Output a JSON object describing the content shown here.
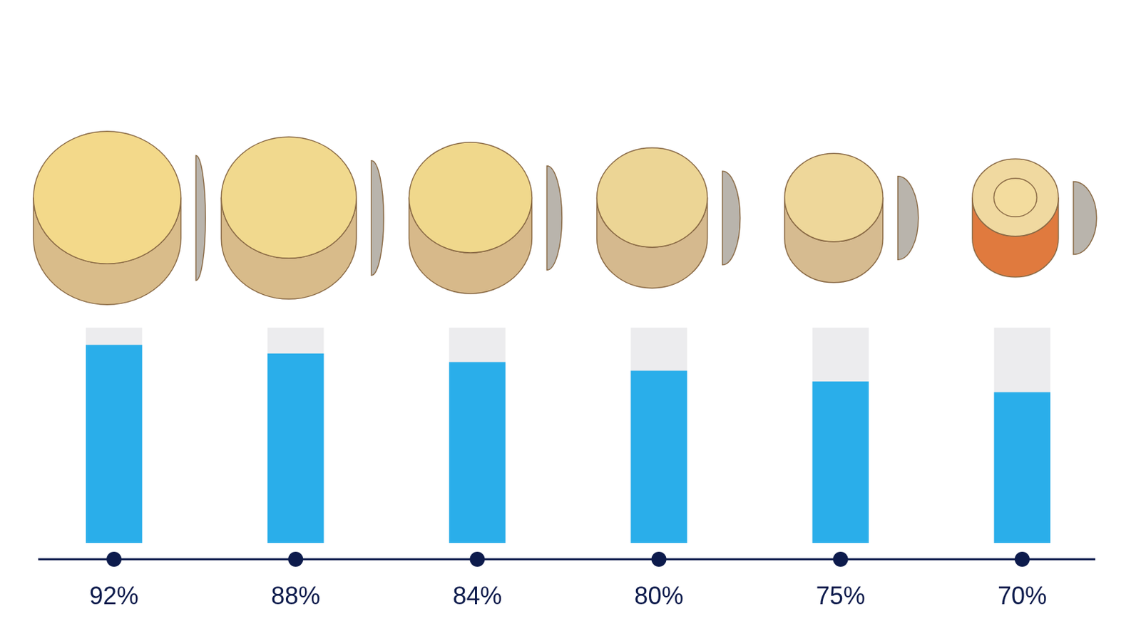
{
  "chart_data": {
    "type": "bar",
    "categories": [
      null,
      null,
      null,
      null,
      null,
      null
    ],
    "values": [
      92,
      88,
      84,
      80,
      75,
      70
    ],
    "value_labels": [
      "92%",
      "88%",
      "84%",
      "80%",
      "75%",
      "70%"
    ],
    "data_labels": true,
    "color": "#2aaeea",
    "ylim": [
      0,
      100
    ],
    "grid": false,
    "tick_labels": false
  }
}
